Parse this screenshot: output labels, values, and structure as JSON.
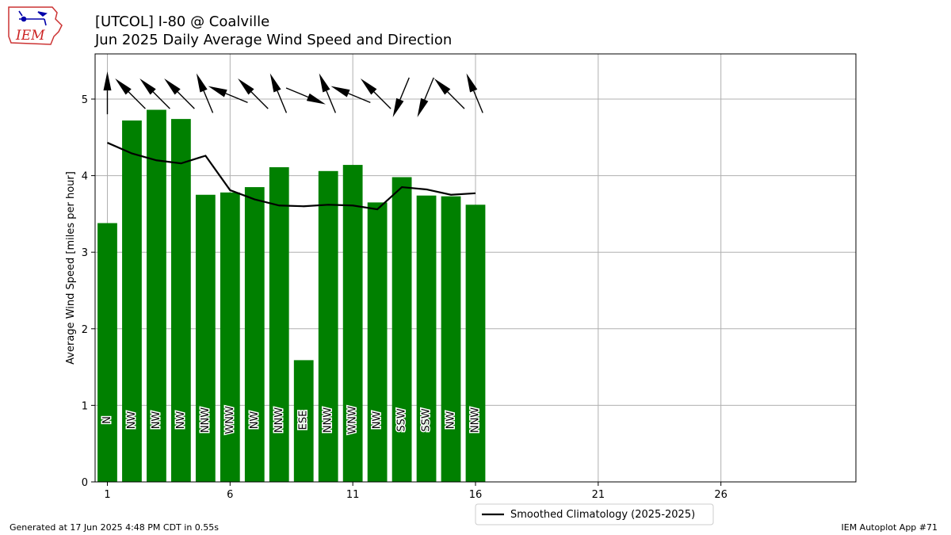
{
  "header": {
    "title_line1": "[UTCOL] I-80 @ Coalville",
    "title_line2": "Jun 2025 Daily Average Wind Speed and Direction",
    "logo_text": "IEM"
  },
  "footer": {
    "left": "Generated at 17 Jun 2025 4:48 PM CDT in 0.55s",
    "right": "IEM Autoplot App #71"
  },
  "colors": {
    "bar": "#008000",
    "climatology_line": "#000000",
    "grid": "#b0b0b0",
    "logo_border": "#cc3333",
    "logo_text": "#cc2222",
    "logo_icon": "#0000aa"
  },
  "chart_data": {
    "type": "bar",
    "title": "[UTCOL] I-80 @ Coalville",
    "subtitle": "Jun 2025 Daily Average Wind Speed and Direction",
    "xlabel": "",
    "ylabel": "Average Wind Speed [miles per hour]",
    "x": [
      1,
      2,
      3,
      4,
      5,
      6,
      7,
      8,
      9,
      10,
      11,
      12,
      13,
      14,
      15,
      16
    ],
    "values": [
      3.38,
      4.72,
      4.86,
      4.74,
      3.75,
      3.78,
      3.85,
      4.11,
      1.59,
      4.06,
      4.14,
      3.65,
      3.98,
      3.74,
      3.73,
      3.62
    ],
    "direction_labels": [
      "N",
      "NW",
      "NW",
      "NW",
      "NNW",
      "WNW",
      "NW",
      "NNW",
      "ESE",
      "NNW",
      "WNW",
      "NW",
      "SSW",
      "SSW",
      "NW",
      "NNW"
    ],
    "direction_degrees": [
      0,
      315,
      315,
      315,
      337.5,
      292.5,
      315,
      337.5,
      112.5,
      337.5,
      292.5,
      315,
      202.5,
      202.5,
      315,
      337.5
    ],
    "series": [
      {
        "name": "Smoothed Climatology (2025-2025)",
        "type": "line",
        "x": [
          1,
          2,
          3,
          4,
          5,
          6,
          7,
          8,
          9,
          10,
          11,
          12,
          13,
          14,
          15,
          16
        ],
        "values": [
          4.43,
          4.29,
          4.2,
          4.16,
          4.26,
          3.81,
          3.69,
          3.61,
          3.6,
          3.62,
          3.61,
          3.56,
          3.85,
          3.82,
          3.75,
          3.77
        ]
      }
    ],
    "xticks": [
      1,
      6,
      11,
      16,
      21,
      26
    ],
    "yticks": [
      0,
      1,
      2,
      3,
      4,
      5
    ],
    "xlim": [
      0.5,
      31.5
    ],
    "ylim": [
      0,
      5.59
    ],
    "grid": true,
    "legend_position": "bottom-center"
  }
}
